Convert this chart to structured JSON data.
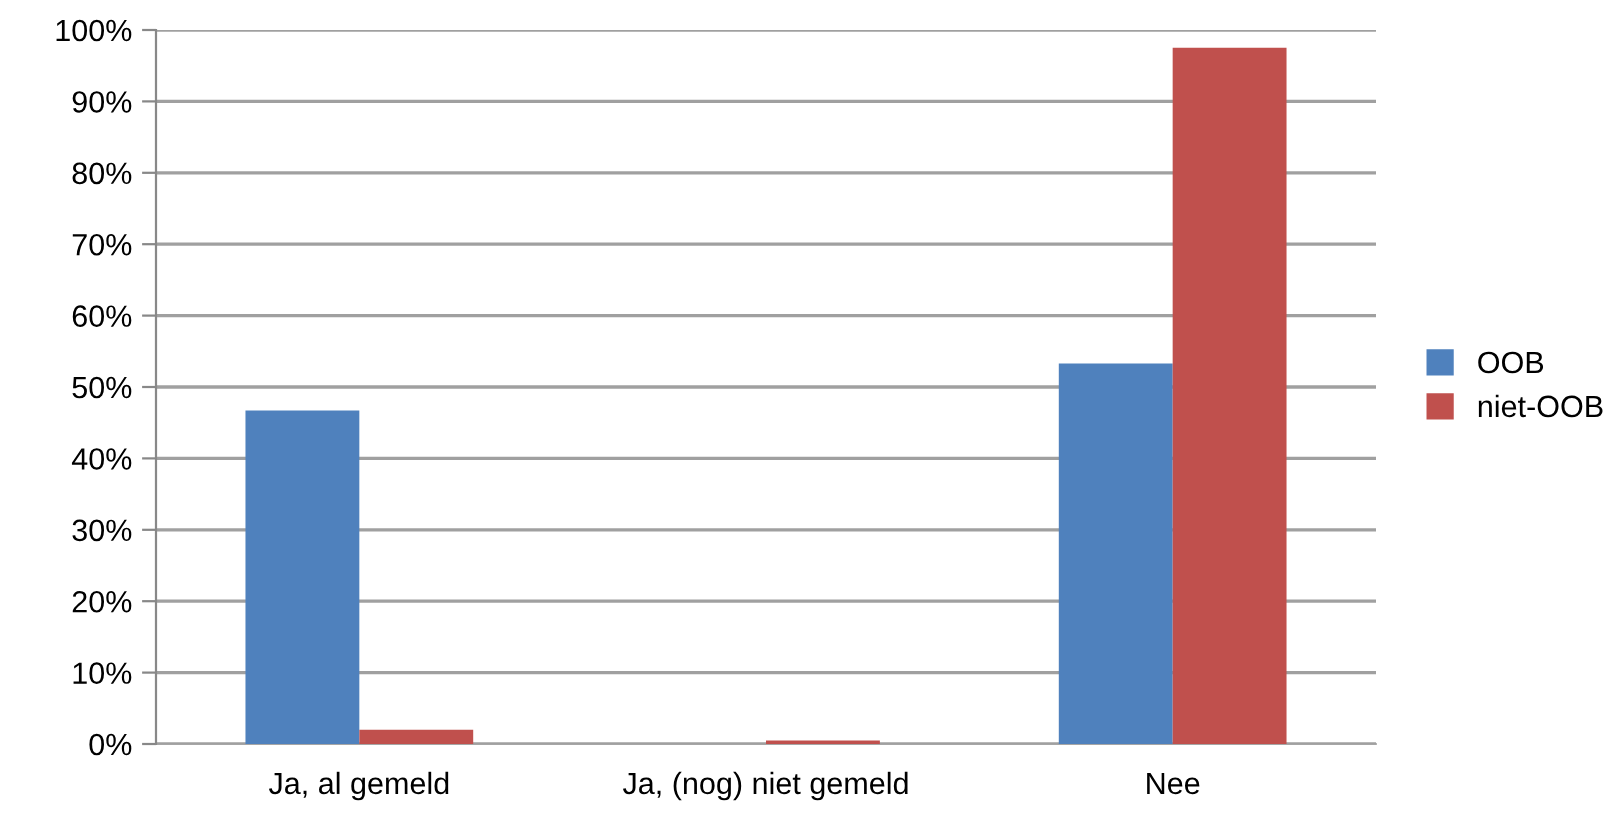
{
  "chart_data": {
    "type": "bar",
    "categories": [
      "Ja, al gemeld",
      "Ja, (nog) niet gemeld",
      "Nee"
    ],
    "series": [
      {
        "name": "OOB",
        "color": "#4f81bd",
        "values": [
          46.7,
          0,
          53.3
        ]
      },
      {
        "name": "niet-OOB",
        "color": "#c0504d",
        "values": [
          2.0,
          0.5,
          97.5
        ]
      }
    ],
    "ylim": [
      0,
      100
    ],
    "yticks": [
      {
        "value": 0,
        "label": "0%"
      },
      {
        "value": 10,
        "label": "10%"
      },
      {
        "value": 20,
        "label": "20%"
      },
      {
        "value": 30,
        "label": "30%"
      },
      {
        "value": 40,
        "label": "40%"
      },
      {
        "value": 50,
        "label": "50%"
      },
      {
        "value": 60,
        "label": "60%"
      },
      {
        "value": 70,
        "label": "70%"
      },
      {
        "value": 80,
        "label": "80%"
      },
      {
        "value": 90,
        "label": "90%"
      },
      {
        "value": 100,
        "label": "100%"
      }
    ],
    "grid": "y",
    "legend": "right"
  }
}
